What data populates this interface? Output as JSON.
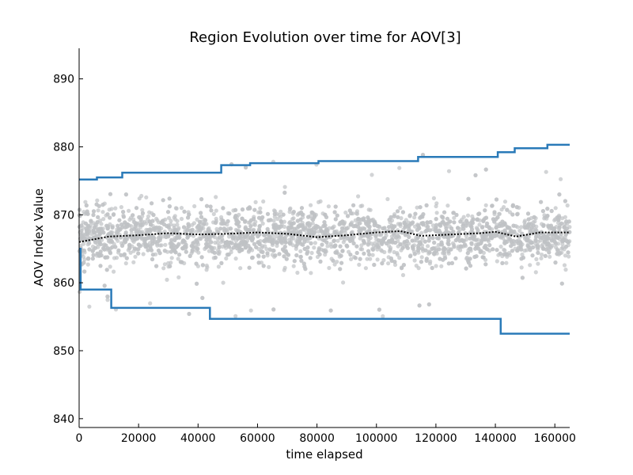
{
  "chart_data": {
    "type": "scatter",
    "title": "Region Evolution over time for AOV[3]",
    "xlabel": "time elapsed",
    "ylabel": "AOV Index Value",
    "xlim": [
      0,
      165000
    ],
    "ylim": [
      838.7,
      894.5
    ],
    "xticks": [
      0,
      20000,
      40000,
      60000,
      80000,
      100000,
      120000,
      140000,
      160000
    ],
    "yticks": [
      840,
      850,
      860,
      870,
      880,
      890
    ],
    "grid": false,
    "colors": {
      "points": "#bfc2c5",
      "region": "#2a7ab8",
      "mean": "#000000"
    },
    "point_cloud": {
      "x_range": [
        0,
        165000
      ],
      "typical_low": 862,
      "typical_high": 873,
      "center": 867
    },
    "upper_boundary": [
      [
        0,
        875.2
      ],
      [
        6000,
        875.2
      ],
      [
        6000,
        875.5
      ],
      [
        14500,
        875.5
      ],
      [
        14500,
        876.2
      ],
      [
        47800,
        876.2
      ],
      [
        47800,
        877.3
      ],
      [
        57500,
        877.3
      ],
      [
        57500,
        877.6
      ],
      [
        80500,
        877.6
      ],
      [
        80500,
        877.9
      ],
      [
        114000,
        877.9
      ],
      [
        114000,
        878.5
      ],
      [
        140800,
        878.5
      ],
      [
        140800,
        879.2
      ],
      [
        146500,
        879.2
      ],
      [
        146500,
        879.8
      ],
      [
        157500,
        879.8
      ],
      [
        157500,
        880.3
      ],
      [
        165000,
        880.3
      ]
    ],
    "lower_boundary": [
      [
        0,
        865.0
      ],
      [
        500,
        865.0
      ],
      [
        500,
        859.0
      ],
      [
        10800,
        859.0
      ],
      [
        10800,
        856.3
      ],
      [
        44000,
        856.3
      ],
      [
        44000,
        854.7
      ],
      [
        141800,
        854.7
      ],
      [
        141800,
        852.5
      ],
      [
        165000,
        852.5
      ]
    ],
    "mean_line": [
      [
        0,
        866.0
      ],
      [
        10000,
        866.8
      ],
      [
        20000,
        867.0
      ],
      [
        30000,
        867.3
      ],
      [
        40000,
        867.1
      ],
      [
        50000,
        867.2
      ],
      [
        60000,
        867.4
      ],
      [
        70000,
        867.2
      ],
      [
        80000,
        866.7
      ],
      [
        90000,
        867.0
      ],
      [
        100000,
        867.4
      ],
      [
        108000,
        867.6
      ],
      [
        115000,
        866.9
      ],
      [
        125000,
        867.1
      ],
      [
        135000,
        867.3
      ],
      [
        140000,
        867.5
      ],
      [
        147000,
        866.8
      ],
      [
        155000,
        867.4
      ],
      [
        165000,
        867.4
      ]
    ]
  }
}
